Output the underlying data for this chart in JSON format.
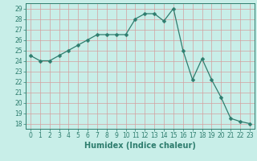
{
  "x": [
    0,
    1,
    2,
    3,
    4,
    5,
    6,
    7,
    8,
    9,
    10,
    11,
    12,
    13,
    14,
    15,
    16,
    17,
    18,
    19,
    20,
    21,
    22,
    23
  ],
  "y": [
    24.5,
    24.0,
    24.0,
    24.5,
    25.0,
    25.5,
    26.0,
    26.5,
    26.5,
    26.5,
    26.5,
    28.0,
    28.5,
    28.5,
    27.8,
    29.0,
    25.0,
    22.2,
    24.2,
    22.2,
    20.5,
    18.5,
    18.2,
    18.0
  ],
  "line_color": "#2e7d6e",
  "marker": "D",
  "marker_size": 2.5,
  "bg_color": "#c8eee8",
  "plot_bg_color": "#c8eee8",
  "grid_color": "#d4a0a0",
  "title": "",
  "xlabel": "Humidex (Indice chaleur)",
  "ylabel": "",
  "xlim": [
    -0.5,
    23.5
  ],
  "ylim": [
    17.5,
    29.5
  ],
  "yticks": [
    18,
    19,
    20,
    21,
    22,
    23,
    24,
    25,
    26,
    27,
    28,
    29
  ],
  "xticks": [
    0,
    1,
    2,
    3,
    4,
    5,
    6,
    7,
    8,
    9,
    10,
    11,
    12,
    13,
    14,
    15,
    16,
    17,
    18,
    19,
    20,
    21,
    22,
    23
  ],
  "tick_color": "#2e7d6e",
  "label_color": "#2e7d6e",
  "axis_color": "#2e7d6e",
  "xlabel_fontsize": 7,
  "tick_fontsize": 5.5
}
